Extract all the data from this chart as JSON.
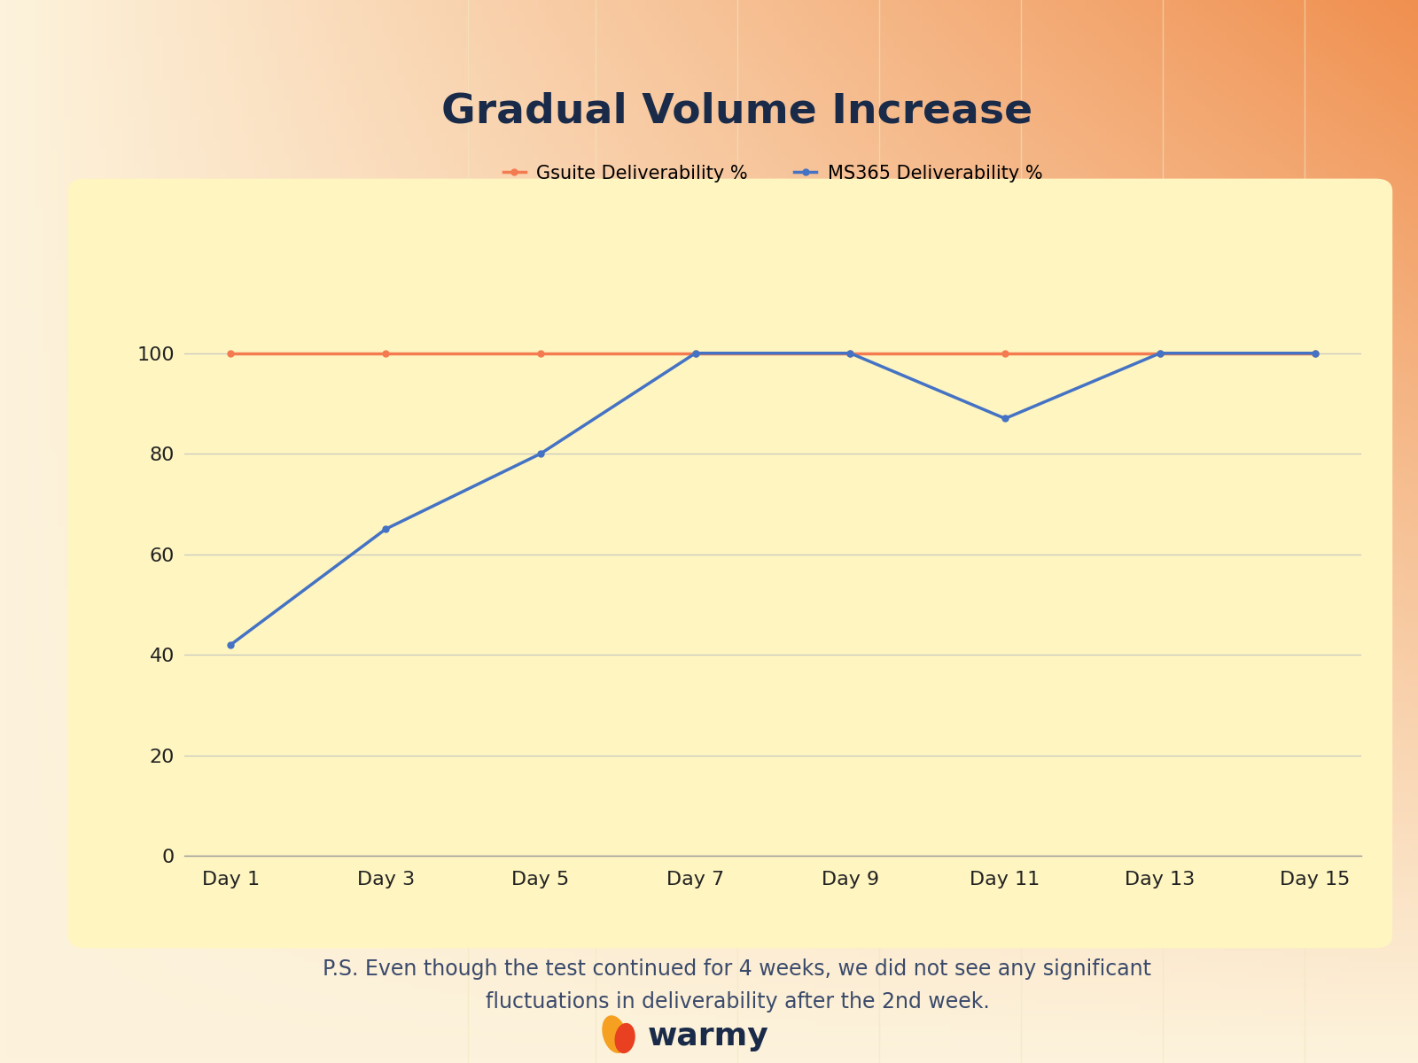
{
  "title": "Gradual Volume Increase",
  "days": [
    "Day 1",
    "Day 3",
    "Day 5",
    "Day 7",
    "Day 9",
    "Day 11",
    "Day 13",
    "Day 15"
  ],
  "gsuite_values": [
    100,
    100,
    100,
    100,
    100,
    100,
    100,
    100
  ],
  "ms365_values": [
    42,
    65,
    80,
    100,
    100,
    87,
    100,
    100
  ],
  "gsuite_color": "#F47B50",
  "ms365_color": "#4472C4",
  "title_color": "#1a2b4a",
  "axis_label_color": "#222222",
  "annotation_color": "#3a4a6b",
  "bg_outer_tl": "#fdf3dc",
  "bg_outer_tr": "#f0a070",
  "bg_outer_bl": "#fdf3dc",
  "bg_outer_br": "#fdf3dc",
  "bg_inner_color": "#fef5c0",
  "note_text": "P.S. Even though the test continued for 4 weeks, we did not see any significant\nfluctuations in deliverability after the 2nd week.",
  "gsuite_label": "Gsuite Deliverability %",
  "ms365_label": "MS365 Deliverability %",
  "ylim": [
    0,
    110
  ],
  "yticks": [
    0,
    20,
    40,
    60,
    80,
    100
  ],
  "line_width": 2.5,
  "marker_size": 5,
  "title_fontsize": 34,
  "legend_fontsize": 15,
  "tick_fontsize": 16,
  "note_fontsize": 17,
  "warmy_fontsize": 26
}
